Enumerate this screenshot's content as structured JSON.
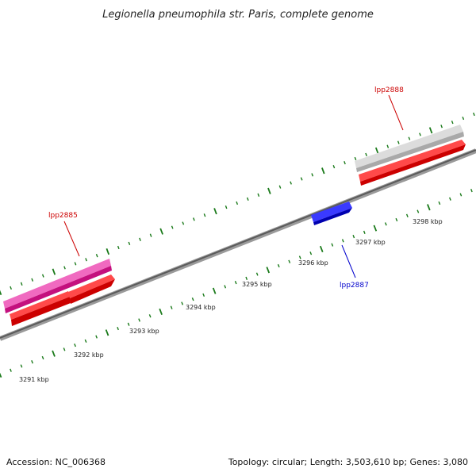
{
  "title": "Legionella pneumophila str. Paris, complete genome",
  "footer": {
    "accession": "Accession: NC_006368",
    "stats": "Topology: circular; Length: 3,503,610 bp; Genes: 3,080"
  },
  "colors": {
    "backbone": "#7a7a7a",
    "tick": "#1a7a1a",
    "label_red": "#cc0000",
    "label_blue": "#0000cc",
    "gene_red": "#ff0000",
    "gene_magenta": "#e8199a",
    "gene_gray": "#c8c8c8",
    "gene_blue": "#0000ee"
  },
  "ticks": [
    {
      "label": "3291 kbp"
    },
    {
      "label": "3292 kbp"
    },
    {
      "label": "3293 kbp"
    },
    {
      "label": "3294 kbp"
    },
    {
      "label": "3295 kbp"
    },
    {
      "label": "3296 kbp"
    },
    {
      "label": "3297 kbp"
    },
    {
      "label": "3298 kbp"
    }
  ],
  "genes": [
    {
      "label": "lpp2885"
    },
    {
      "label": "lpp2887"
    },
    {
      "label": "lpp2888"
    }
  ]
}
